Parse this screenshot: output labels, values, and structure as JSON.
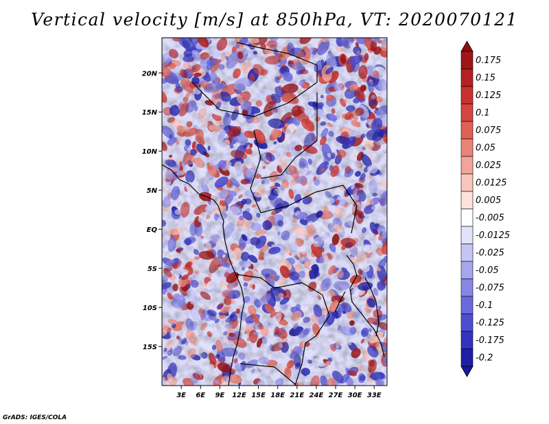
{
  "title": "Vertical velocity [m/s] at 850hPa, VT: 2020070121",
  "credit": "GrADS: IGES/COLA",
  "map": {
    "lon_range": [
      0,
      35
    ],
    "lat_range": [
      -20,
      24.5
    ],
    "lat_ticks": [
      {
        "value": 20,
        "label": "20N"
      },
      {
        "value": 15,
        "label": "15N"
      },
      {
        "value": 10,
        "label": "10N"
      },
      {
        "value": 5,
        "label": "5N"
      },
      {
        "value": 0,
        "label": "EQ"
      },
      {
        "value": -5,
        "label": "5S"
      },
      {
        "value": -10,
        "label": "10S"
      },
      {
        "value": -15,
        "label": "15S"
      }
    ],
    "lon_ticks": [
      {
        "value": 3,
        "label": "3E"
      },
      {
        "value": 6,
        "label": "6E"
      },
      {
        "value": 9,
        "label": "9E"
      },
      {
        "value": 12,
        "label": "12E"
      },
      {
        "value": 15,
        "label": "15E"
      },
      {
        "value": 18,
        "label": "18E"
      },
      {
        "value": 21,
        "label": "21E"
      },
      {
        "value": 24,
        "label": "24E"
      },
      {
        "value": 27,
        "label": "27E"
      },
      {
        "value": 30,
        "label": "30E"
      },
      {
        "value": 33,
        "label": "33E"
      }
    ]
  },
  "colorbar": {
    "levels": [
      {
        "label": "0.175",
        "color": "#9e1618"
      },
      {
        "label": "0.15",
        "color": "#b42024"
      },
      {
        "label": "0.125",
        "color": "#c8312e"
      },
      {
        "label": "0.1",
        "color": "#d6453f"
      },
      {
        "label": "0.075",
        "color": "#e06055"
      },
      {
        "label": "0.05",
        "color": "#e98478"
      },
      {
        "label": "0.025",
        "color": "#f2a49a"
      },
      {
        "label": "0.0125",
        "color": "#f8c6bd"
      },
      {
        "label": "0.005",
        "color": "#fde2dc"
      },
      {
        "label": "-0.005",
        "color": "#ffffff"
      },
      {
        "label": "-0.0125",
        "color": "#e2e2fb"
      },
      {
        "label": "-0.025",
        "color": "#c5c5f5"
      },
      {
        "label": "-0.05",
        "color": "#a6a6ef"
      },
      {
        "label": "-0.075",
        "color": "#8787e7"
      },
      {
        "label": "-0.1",
        "color": "#6a6ade"
      },
      {
        "label": "-0.125",
        "color": "#4d4dd2"
      },
      {
        "label": "-0.175",
        "color": "#3333bf"
      },
      {
        "label": "-0.2",
        "color": "#1e1ea8"
      }
    ],
    "top_color": "#8e1012",
    "bottom_color": "#18189a"
  }
}
